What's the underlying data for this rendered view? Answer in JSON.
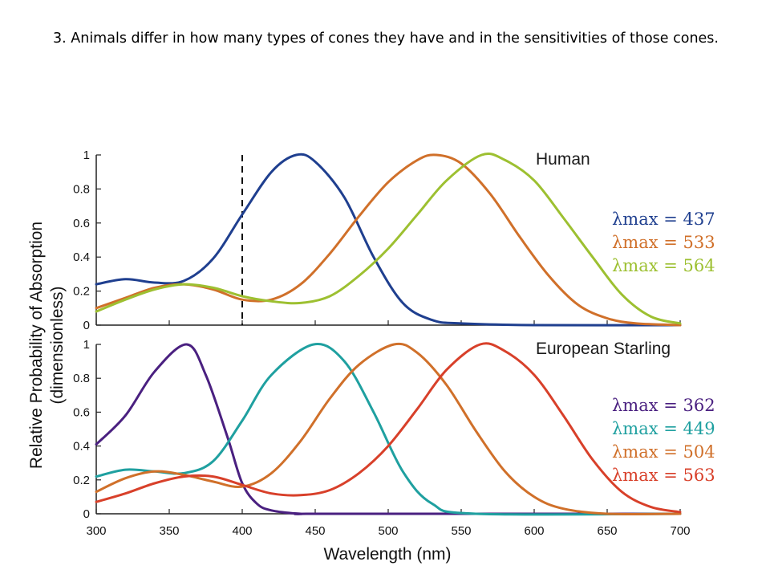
{
  "slide": {
    "text": "3.  Animals differ in how many types of cones they have and in the sensitivities of those cones."
  },
  "chart_data": [
    {
      "type": "line",
      "title": "Human",
      "xlabel": "Wavelength (nm)",
      "ylabel_line1": "Relative Probability of Absorption",
      "ylabel_line2": "(dimensionless)",
      "xlim": [
        300,
        700
      ],
      "ylim": [
        0,
        1
      ],
      "yticks": [
        0,
        0.2,
        0.4,
        0.6,
        0.8,
        1
      ],
      "yticklabels": [
        "0",
        "0.2",
        "0.4",
        "0.6",
        "0.8",
        "1"
      ],
      "dashed_line_x": 400,
      "legend_position": "right",
      "series": [
        {
          "name": "λmax = 437",
          "color": "#1f3f8f",
          "x": [
            300,
            320,
            340,
            360,
            380,
            400,
            420,
            437,
            450,
            470,
            490,
            510,
            530,
            550,
            600,
            700
          ],
          "y": [
            0.24,
            0.27,
            0.25,
            0.26,
            0.39,
            0.65,
            0.9,
            1.0,
            0.96,
            0.75,
            0.4,
            0.13,
            0.03,
            0.01,
            0.0,
            0.0
          ]
        },
        {
          "name": "λmax = 533",
          "color": "#d0702a",
          "x": [
            300,
            320,
            340,
            360,
            380,
            400,
            420,
            440,
            460,
            480,
            500,
            520,
            533,
            550,
            570,
            590,
            610,
            630,
            650,
            670,
            700
          ],
          "y": [
            0.1,
            0.16,
            0.22,
            0.24,
            0.21,
            0.15,
            0.15,
            0.24,
            0.42,
            0.64,
            0.84,
            0.97,
            1.0,
            0.95,
            0.77,
            0.52,
            0.29,
            0.12,
            0.04,
            0.01,
            0.0
          ]
        },
        {
          "name": "λmax = 564",
          "color": "#9dc031",
          "x": [
            300,
            320,
            340,
            360,
            380,
            400,
            420,
            440,
            460,
            480,
            500,
            520,
            540,
            564,
            580,
            600,
            620,
            640,
            660,
            680,
            700
          ],
          "y": [
            0.08,
            0.15,
            0.21,
            0.24,
            0.22,
            0.17,
            0.14,
            0.13,
            0.17,
            0.29,
            0.45,
            0.65,
            0.85,
            1.0,
            0.97,
            0.85,
            0.63,
            0.4,
            0.18,
            0.05,
            0.01
          ]
        }
      ]
    },
    {
      "type": "line",
      "title": "European Starling",
      "xlabel": "Wavelength (nm)",
      "xlim": [
        300,
        700
      ],
      "ylim": [
        0,
        1
      ],
      "xticks": [
        300,
        350,
        400,
        450,
        500,
        550,
        600,
        650,
        700
      ],
      "xticklabels": [
        "300",
        "350",
        "400",
        "450",
        "500",
        "550",
        "600",
        "650",
        "700"
      ],
      "yticks": [
        0,
        0.2,
        0.4,
        0.6,
        0.8,
        1
      ],
      "yticklabels": [
        "0",
        "0.2",
        "0.4",
        "0.6",
        "0.8",
        "1"
      ],
      "legend_position": "right",
      "series": [
        {
          "name": "λmax = 362",
          "color": "#4a2080",
          "x": [
            300,
            320,
            340,
            362,
            375,
            390,
            400,
            410,
            420,
            440,
            460,
            700
          ],
          "y": [
            0.41,
            0.58,
            0.84,
            1.0,
            0.82,
            0.45,
            0.18,
            0.06,
            0.02,
            0.0,
            0.0,
            0.0
          ]
        },
        {
          "name": "λmax = 449",
          "color": "#1fa0a0",
          "x": [
            300,
            320,
            340,
            360,
            380,
            400,
            420,
            449,
            470,
            490,
            510,
            530,
            560,
            700
          ],
          "y": [
            0.22,
            0.26,
            0.25,
            0.24,
            0.31,
            0.55,
            0.82,
            1.0,
            0.9,
            0.6,
            0.25,
            0.06,
            0.0,
            0.0
          ]
        },
        {
          "name": "λmax = 504",
          "color": "#d0702a",
          "x": [
            300,
            320,
            340,
            360,
            380,
            400,
            420,
            440,
            460,
            480,
            504,
            520,
            540,
            560,
            580,
            600,
            620,
            650,
            700
          ],
          "y": [
            0.13,
            0.21,
            0.25,
            0.23,
            0.19,
            0.16,
            0.24,
            0.43,
            0.68,
            0.88,
            1.0,
            0.95,
            0.76,
            0.49,
            0.25,
            0.1,
            0.03,
            0.0,
            0.0
          ]
        },
        {
          "name": "λmax = 563",
          "color": "#d8402a",
          "x": [
            300,
            320,
            340,
            360,
            380,
            400,
            420,
            440,
            460,
            480,
            500,
            520,
            540,
            563,
            580,
            600,
            620,
            640,
            660,
            680,
            700
          ],
          "y": [
            0.07,
            0.12,
            0.18,
            0.22,
            0.22,
            0.17,
            0.12,
            0.11,
            0.14,
            0.24,
            0.4,
            0.62,
            0.85,
            1.0,
            0.96,
            0.82,
            0.58,
            0.32,
            0.13,
            0.04,
            0.01
          ]
        }
      ]
    }
  ]
}
